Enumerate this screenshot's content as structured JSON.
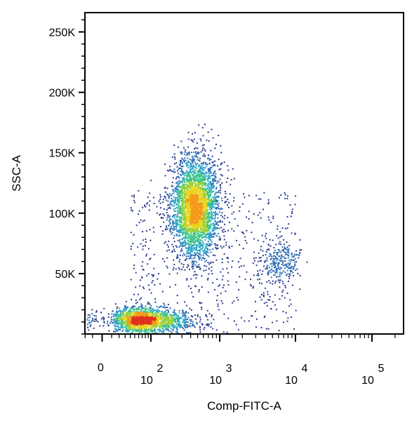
{
  "chart_data": {
    "type": "scatter",
    "subtype": "density-dot-plot",
    "xlabel": "Comp-FITC-A",
    "ylabel": "SSC-A",
    "x_scale": "biexponential",
    "y_scale": "linear",
    "ylim": [
      0,
      262144
    ],
    "y_ticks": [
      {
        "value": 50000,
        "label": "50K"
      },
      {
        "value": 100000,
        "label": "100K"
      },
      {
        "value": 150000,
        "label": "150K"
      },
      {
        "value": 200000,
        "label": "200K"
      },
      {
        "value": 250000,
        "label": "250K"
      }
    ],
    "x_ticks": [
      {
        "value": 0,
        "label": "0",
        "exp": ""
      },
      {
        "value": 100,
        "label": "10",
        "exp": "2"
      },
      {
        "value": 1000,
        "label": "10",
        "exp": "3"
      },
      {
        "value": 10000,
        "label": "10",
        "exp": "4"
      },
      {
        "value": 100000,
        "label": "10",
        "exp": "5"
      }
    ],
    "grid": false,
    "legend": "none",
    "colormap": [
      "#2b3a8f",
      "#2f6db5",
      "#2aa6c8",
      "#3ec48a",
      "#9ad13c",
      "#e9d51c",
      "#f39a1a",
      "#e0301e"
    ],
    "populations": [
      {
        "name": "",
        "fitc_center": 80,
        "ssc_center": 12000,
        "fitc_spread_decades": 0.35,
        "ssc_sd": 5000,
        "count": 1900
      },
      {
        "name": "",
        "fitc_center": 450,
        "ssc_center": 105000,
        "fitc_spread_decades": 0.16,
        "ssc_sd": 21000,
        "count": 3200
      },
      {
        "name": "",
        "fitc_center": 6000,
        "ssc_center": 60000,
        "fitc_spread_decades": 0.14,
        "ssc_sd": 10000,
        "count": 260
      }
    ]
  }
}
